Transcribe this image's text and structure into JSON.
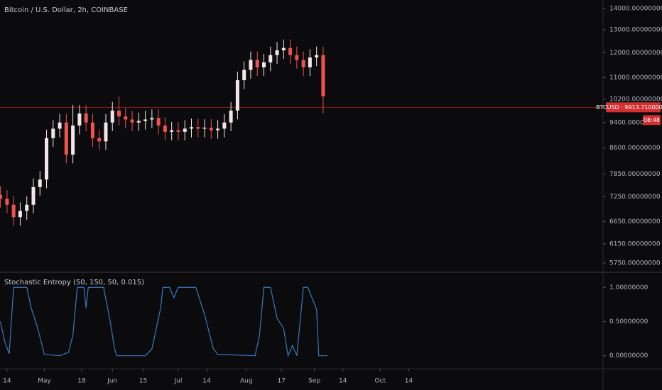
{
  "chart_data": [
    {
      "type": "candlestick",
      "title": "Bitcoin / U.S. Dollar, 2h, COINBASE",
      "log_scale": true,
      "grid": false,
      "up_color": "#f2e6e8",
      "down_color": "#ef5350",
      "x": [
        -3,
        0,
        3,
        6,
        9,
        12,
        15,
        18,
        21,
        24,
        27,
        30,
        33,
        36,
        39,
        42,
        45,
        48,
        51,
        54,
        57,
        60,
        63,
        66,
        69,
        72,
        75,
        78,
        81,
        84,
        87,
        90,
        93,
        96,
        99,
        102,
        105,
        108,
        111,
        114,
        117,
        120,
        123,
        126,
        129,
        132,
        135,
        138,
        141,
        144
      ],
      "open": [
        7300,
        7200,
        7050,
        6750,
        6900,
        7050,
        7500,
        7700,
        8900,
        9200,
        9400,
        8400,
        9300,
        9700,
        9400,
        8900,
        8800,
        9400,
        9800,
        9600,
        9500,
        9400,
        9450,
        9500,
        9550,
        9300,
        9100,
        9150,
        9100,
        9200,
        9250,
        9200,
        9230,
        9150,
        9200,
        9400,
        9800,
        10900,
        11300,
        11700,
        11400,
        11600,
        11900,
        12100,
        12200,
        11900,
        11700,
        11400,
        11800,
        11900
      ],
      "high": [
        7520,
        7420,
        7260,
        7110,
        7260,
        7730,
        7930,
        9170,
        9480,
        9680,
        9680,
        10000,
        9990,
        9990,
        9680,
        9170,
        9680,
        10100,
        10300,
        9890,
        9790,
        9730,
        9790,
        9840,
        9840,
        9580,
        9420,
        9420,
        9480,
        9530,
        9530,
        9510,
        9510,
        9480,
        9680,
        10100,
        11230,
        11640,
        12050,
        12050,
        11950,
        12260,
        12460,
        12570,
        12570,
        12260,
        12050,
        12150,
        12260,
        12260
      ],
      "low": [
        6980,
        6840,
        6550,
        6550,
        6690,
        6840,
        7280,
        7470,
        8630,
        8920,
        8150,
        8150,
        9020,
        9120,
        8630,
        8540,
        8540,
        9120,
        9310,
        9220,
        9120,
        9120,
        9170,
        9220,
        9020,
        8830,
        8830,
        8830,
        8830,
        8920,
        8920,
        8920,
        8880,
        8880,
        8920,
        9120,
        9510,
        10570,
        10960,
        11060,
        11060,
        11250,
        11540,
        11740,
        11540,
        11350,
        11060,
        11060,
        11450,
        9700
      ],
      "close": [
        7200,
        7050,
        6750,
        6900,
        7050,
        7500,
        7700,
        8900,
        9200,
        9400,
        8400,
        9300,
        9700,
        9400,
        8900,
        8800,
        9400,
        9800,
        9600,
        9500,
        9400,
        9450,
        9500,
        9550,
        9300,
        9100,
        9150,
        9100,
        9200,
        9250,
        9200,
        9230,
        9150,
        9200,
        9400,
        9800,
        10900,
        11300,
        11700,
        11400,
        11600,
        11900,
        12100,
        12200,
        11900,
        11700,
        11400,
        11800,
        11900,
        10300
      ],
      "last_price": 9913.71,
      "last_price_label": "BTCUSD · 9913.71000000",
      "countdown": "08:48",
      "xlim": [
        -3.2,
        271.5
      ],
      "ylim": [
        5580,
        14430
      ],
      "yticks": [
        {
          "value": 14000,
          "label": "14000.00000000"
        },
        {
          "value": 13000,
          "label": "13000.00000000"
        },
        {
          "value": 12000,
          "label": "12000.00000000"
        },
        {
          "value": 11000,
          "label": "11000.00000000"
        },
        {
          "value": 10200,
          "label": "10200.00000000"
        },
        {
          "value": 9400,
          "label": "9400.00000000"
        },
        {
          "value": 8600,
          "label": "8600.00000000"
        },
        {
          "value": 7850,
          "label": "7850.00000000"
        },
        {
          "value": 7250,
          "label": "7250.00000000"
        },
        {
          "value": 6650,
          "label": "6650.00000000"
        },
        {
          "value": 6150,
          "label": "6150.00000000"
        },
        {
          "value": 5750,
          "label": "5750.00000000"
        }
      ]
    },
    {
      "type": "line",
      "title": "Stochastic Entropy (50, 150, 50, 0.015)",
      "color": "#3a78c2",
      "grid": false,
      "x": [
        -3,
        -1,
        1,
        3,
        9,
        11,
        14,
        17,
        24,
        28,
        30,
        32,
        35,
        36,
        37,
        44,
        47,
        49,
        50,
        63,
        66,
        70,
        71,
        74,
        76,
        78,
        86,
        90,
        94,
        96,
        113,
        115,
        117,
        120,
        123,
        126,
        128,
        130,
        132,
        135,
        137,
        141,
        142,
        146
      ],
      "values": [
        0.5,
        0.2,
        0.03,
        1.0,
        1.0,
        0.7,
        0.4,
        0.02,
        0.0,
        0.05,
        0.3,
        1.0,
        1.0,
        0.7,
        1.0,
        1.0,
        0.5,
        0.1,
        0.0,
        0.0,
        0.1,
        0.7,
        1.0,
        1.0,
        0.85,
        1.0,
        1.0,
        0.6,
        0.1,
        0.02,
        0.0,
        0.3,
        1.0,
        1.0,
        0.55,
        0.4,
        0.0,
        0.15,
        0.0,
        1.0,
        1.0,
        0.68,
        0.0,
        0.0
      ],
      "xlim": [
        -3.2,
        271.5
      ],
      "ylim": [
        -0.19,
        1.21
      ],
      "yticks": [
        {
          "value": 1,
          "label": "1.00000000"
        },
        {
          "value": 0.5,
          "label": "0.50000000"
        },
        {
          "value": 0,
          "label": "0.00000000"
        }
      ],
      "xticks": [
        {
          "value": 0,
          "label": "14"
        },
        {
          "value": 17,
          "label": "May"
        },
        {
          "value": 34,
          "label": "18"
        },
        {
          "value": 48,
          "label": "Jun"
        },
        {
          "value": 62,
          "label": "15"
        },
        {
          "value": 78,
          "label": "Jul"
        },
        {
          "value": 91,
          "label": "14"
        },
        {
          "value": 109,
          "label": "Aug"
        },
        {
          "value": 125,
          "label": "17"
        },
        {
          "value": 140,
          "label": "Sep"
        },
        {
          "value": 153,
          "label": "14"
        },
        {
          "value": 170,
          "label": "Oct"
        },
        {
          "value": 183,
          "label": "14"
        }
      ]
    }
  ]
}
